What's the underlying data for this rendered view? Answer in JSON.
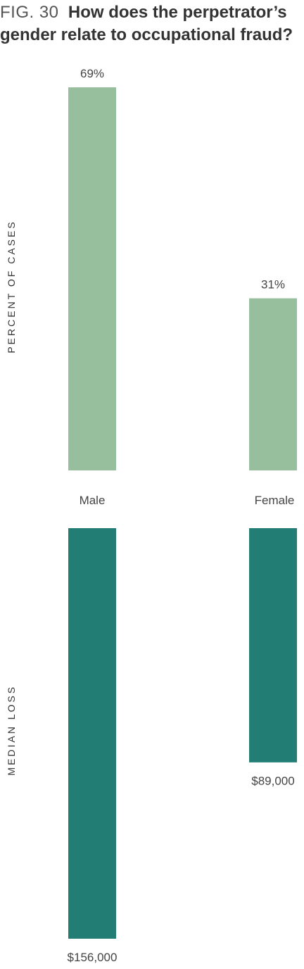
{
  "title": {
    "fig_number": "FIG. 30",
    "question": "How does the perpetrator’s gender relate to occupational fraud?"
  },
  "colors": {
    "percent_bar": "#97bf9e",
    "loss_bar": "#227e75"
  },
  "chart_data": [
    {
      "type": "bar",
      "ylabel": "PERCENT OF CASES",
      "categories": [
        "Male",
        "Female"
      ],
      "values": [
        69,
        31
      ],
      "value_labels": [
        "69%",
        "31%"
      ],
      "ylim": [
        0,
        69
      ]
    },
    {
      "type": "bar",
      "ylabel": "MEDIAN LOSS",
      "categories": [
        "Male",
        "Female"
      ],
      "values": [
        156000,
        89000
      ],
      "value_labels": [
        "$156,000",
        "$89,000"
      ],
      "ylim": [
        0,
        156000
      ]
    }
  ]
}
